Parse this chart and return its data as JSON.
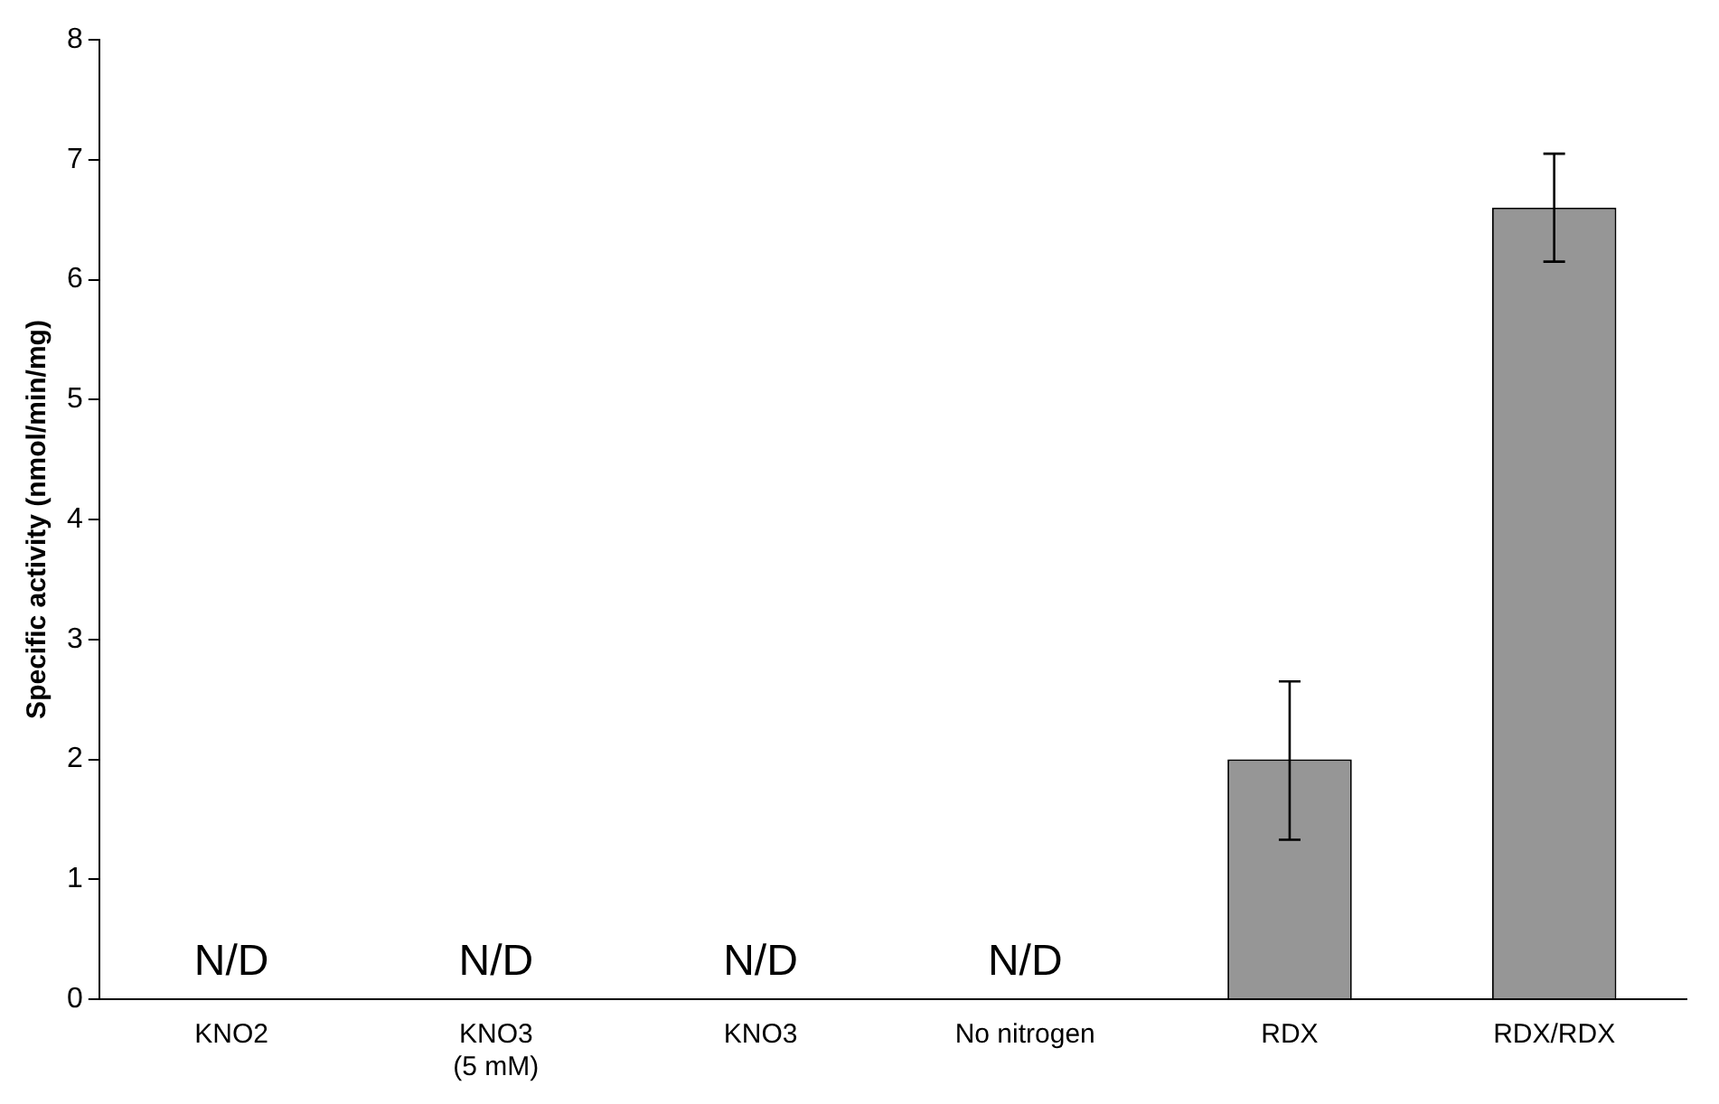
{
  "chart_data": {
    "type": "bar",
    "ylabel": "Specific activity (nmol/min/mg)",
    "categories": [
      "KNO2",
      "KNO3\n(5 mM)",
      "KNO3",
      "No nitrogen",
      "RDX",
      "RDX/RDX"
    ],
    "values": [
      null,
      null,
      null,
      null,
      2.0,
      6.6
    ],
    "value_labels": [
      "N/D",
      "N/D",
      "N/D",
      "N/D",
      null,
      null
    ],
    "errors": [
      null,
      null,
      null,
      null,
      [
        1.33,
        2.65
      ],
      [
        6.15,
        7.05
      ]
    ],
    "color": "#969696",
    "ylim": [
      0,
      8
    ],
    "yticks": [
      0,
      1,
      2,
      3,
      4,
      5,
      6,
      7,
      8
    ],
    "grid": false,
    "legend": false
  }
}
